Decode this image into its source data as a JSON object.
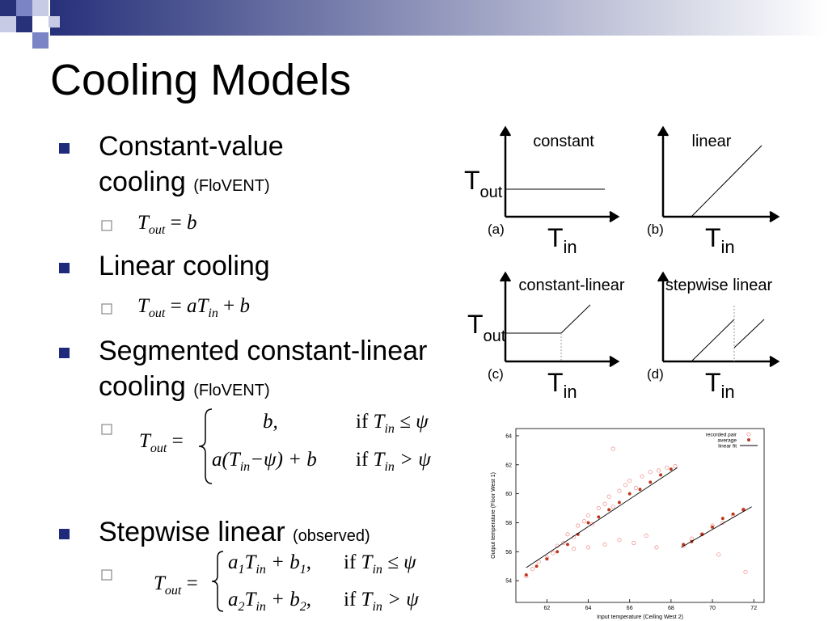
{
  "header": {
    "title": "Cooling Models"
  },
  "bullets": [
    {
      "text": "Constant-value cooling",
      "note": "(FloVENT)",
      "formula": [
        "T",
        "out",
        "=",
        "b"
      ]
    },
    {
      "text": "Linear cooling",
      "formula": [
        "T",
        "out",
        "=",
        "aT",
        "in",
        "+",
        "b"
      ]
    },
    {
      "text": "Segmented constant-linear cooling",
      "note": "(FloVENT)",
      "formula": {
        "lhs": [
          "T",
          "out",
          "="
        ],
        "cases": [
          {
            "expr": [
              "b,"
            ],
            "cond": [
              "if",
              "T",
              "in",
              "≤ ψ"
            ]
          },
          {
            "expr": [
              "a(T",
              "in",
              "−ψ) + b"
            ],
            "cond": [
              "if",
              "T",
              "in",
              "> ψ"
            ]
          }
        ]
      }
    },
    {
      "text": "Stepwise linear",
      "note": "(observed)",
      "formula": {
        "lhs": [
          "T",
          "out",
          "="
        ],
        "cases": [
          {
            "expr": [
              "a",
              "1",
              "T",
              "in",
              "+ b",
              "1",
              ","
            ],
            "cond": [
              "if",
              "T",
              "in",
              "≤ ψ"
            ]
          },
          {
            "expr": [
              "a",
              "2",
              "T",
              "in",
              "+ b",
              "2",
              ","
            ],
            "cond": [
              "if",
              "T",
              "in",
              "> ψ"
            ]
          }
        ]
      }
    }
  ],
  "diagrams": [
    {
      "title": "constant",
      "tag": "(a)",
      "y_label": [
        "T",
        "out"
      ],
      "x_label": [
        "T",
        "in"
      ]
    },
    {
      "title": "linear",
      "tag": "(b)",
      "x_label": [
        "T",
        "in"
      ]
    },
    {
      "title": "constant-linear",
      "tag": "(c)",
      "y_label": [
        "T",
        "out"
      ],
      "x_label": [
        "T",
        "in"
      ]
    },
    {
      "title": "stepwise linear",
      "tag": "(d)",
      "x_label": [
        "T",
        "in"
      ]
    }
  ],
  "chart_data": {
    "type": "scatter",
    "x_label": "Input temperature (Ceiling West 2)",
    "y_label": "Output temperature (Floor West 1)",
    "xlim": [
      60.5,
      72.5
    ],
    "ylim": [
      52.5,
      64.5
    ],
    "xticks": [
      62,
      64,
      66,
      68,
      70,
      72
    ],
    "yticks": [
      54,
      56,
      58,
      60,
      62,
      64
    ],
    "legend": "top-right",
    "series": [
      {
        "name": "recorded pair",
        "color": "#f08a8a",
        "style": "hollow",
        "x": [
          61,
          61.3,
          61.6,
          62,
          62.3,
          62.5,
          62.8,
          63,
          63.3,
          63.5,
          63.8,
          64,
          64.2,
          64.5,
          64.8,
          65,
          65.2,
          65.5,
          65.8,
          66,
          66.3,
          66.6,
          67,
          67.4,
          67.8,
          68.2,
          65.2,
          64,
          64.8,
          65.5,
          66.2,
          66.8,
          67.3,
          63.3,
          68.6,
          69,
          69.5,
          70,
          70.5,
          71,
          71.5,
          70.3,
          71.6
        ],
        "y": [
          54.3,
          54.8,
          55.3,
          55.6,
          55.9,
          56.4,
          56.6,
          57.2,
          57.0,
          57.8,
          58.1,
          58.5,
          57.9,
          59,
          59.3,
          59.8,
          59.1,
          60.2,
          60.6,
          60.9,
          60.4,
          61.2,
          61.5,
          61.6,
          61.8,
          61.9,
          63.1,
          56.3,
          56.5,
          56.8,
          56.6,
          57.1,
          56.3,
          56.2,
          56.4,
          56.9,
          57.2,
          57.8,
          58,
          58.5,
          58.9,
          55.8,
          54.6
        ]
      },
      {
        "name": "average",
        "color": "#c0341a",
        "style": "filled",
        "x": [
          61,
          61.5,
          62,
          62.5,
          63,
          63.5,
          64,
          64.5,
          65,
          65.5,
          66,
          66.5,
          67,
          67.5,
          68,
          68.6,
          69,
          69.5,
          70,
          70.5,
          71,
          71.5
        ],
        "y": [
          54.4,
          55,
          55.5,
          56,
          56.5,
          57.2,
          58,
          58.4,
          58.9,
          59.4,
          60,
          60.3,
          60.8,
          61.3,
          61.7,
          56.5,
          56.7,
          57.2,
          57.7,
          58.3,
          58.6,
          58.9
        ]
      },
      {
        "name": "linear fit",
        "color": "#000000",
        "style": "line",
        "x": [
          61,
          68.3,
          null,
          68.5,
          71.9
        ],
        "y": [
          54.9,
          61.8,
          null,
          56.3,
          59.1
        ]
      }
    ]
  }
}
